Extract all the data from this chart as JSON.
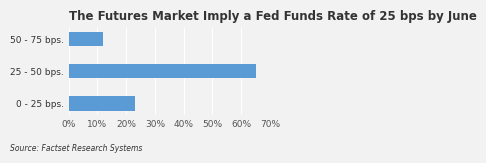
{
  "title": "The Futures Market Imply a Fed Funds Rate of 25 bps by June",
  "categories": [
    "0 - 25 bps.",
    "25 - 50 bps.",
    "50 - 75 bps."
  ],
  "values": [
    0.23,
    0.65,
    0.12
  ],
  "bar_color": "#5b9bd5",
  "xlim": [
    0,
    0.7
  ],
  "xticks": [
    0.0,
    0.1,
    0.2,
    0.3,
    0.4,
    0.5,
    0.6,
    0.7
  ],
  "xtick_labels": [
    "0%",
    "10%",
    "20%",
    "30%",
    "40%",
    "50%",
    "60%",
    "70%"
  ],
  "background_color": "#f2f2f2",
  "source_text": "Source: Factset Research Systems",
  "title_fontsize": 8.5,
  "tick_fontsize": 6.5,
  "source_fontsize": 5.5,
  "bar_height": 0.45
}
